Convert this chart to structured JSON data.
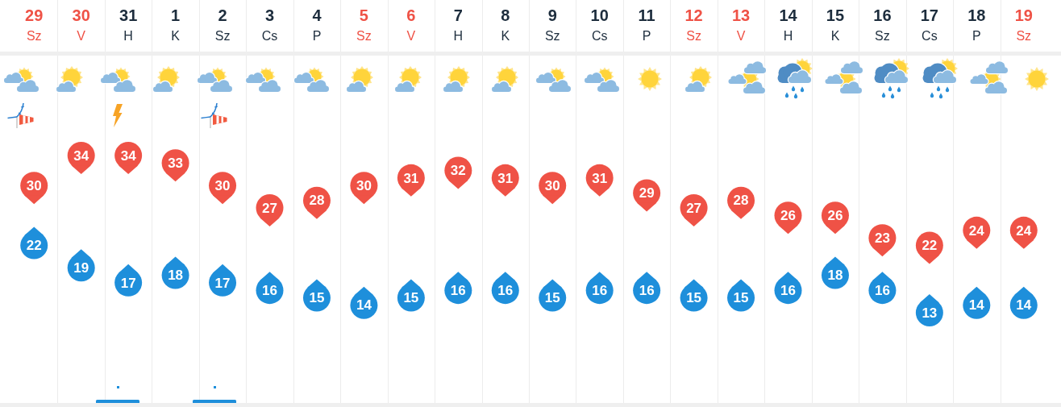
{
  "chart_data": {
    "type": "scatter",
    "categories": [
      "29\nSz",
      "30\nV",
      "31\nH",
      "1\nK",
      "2\nSz",
      "3\nCs",
      "4\nP",
      "5\nSz",
      "6\nV",
      "7\nH",
      "8\nK",
      "9\nSz",
      "10\nCs",
      "11\nP",
      "12\nSz",
      "13\nV",
      "14\nH",
      "15\nK",
      "16\nSz",
      "17\nCs",
      "18\nP",
      "19\nSz"
    ],
    "series": [
      {
        "color": "#ef5246",
        "values": [
          30,
          34,
          34,
          33,
          30,
          27,
          28,
          30,
          31,
          32,
          31,
          30,
          31,
          29,
          27,
          28,
          26,
          26,
          23,
          22,
          24,
          24
        ]
      },
      {
        "color": "#1e8fdb",
        "values": [
          22,
          19,
          17,
          18,
          17,
          16,
          15,
          14,
          15,
          16,
          16,
          15,
          16,
          16,
          15,
          15,
          16,
          18,
          16,
          13,
          14,
          14
        ]
      }
    ],
    "marker": "circle",
    "data_labels": true,
    "grid": "x",
    "tick_labels": "x"
  }
}
